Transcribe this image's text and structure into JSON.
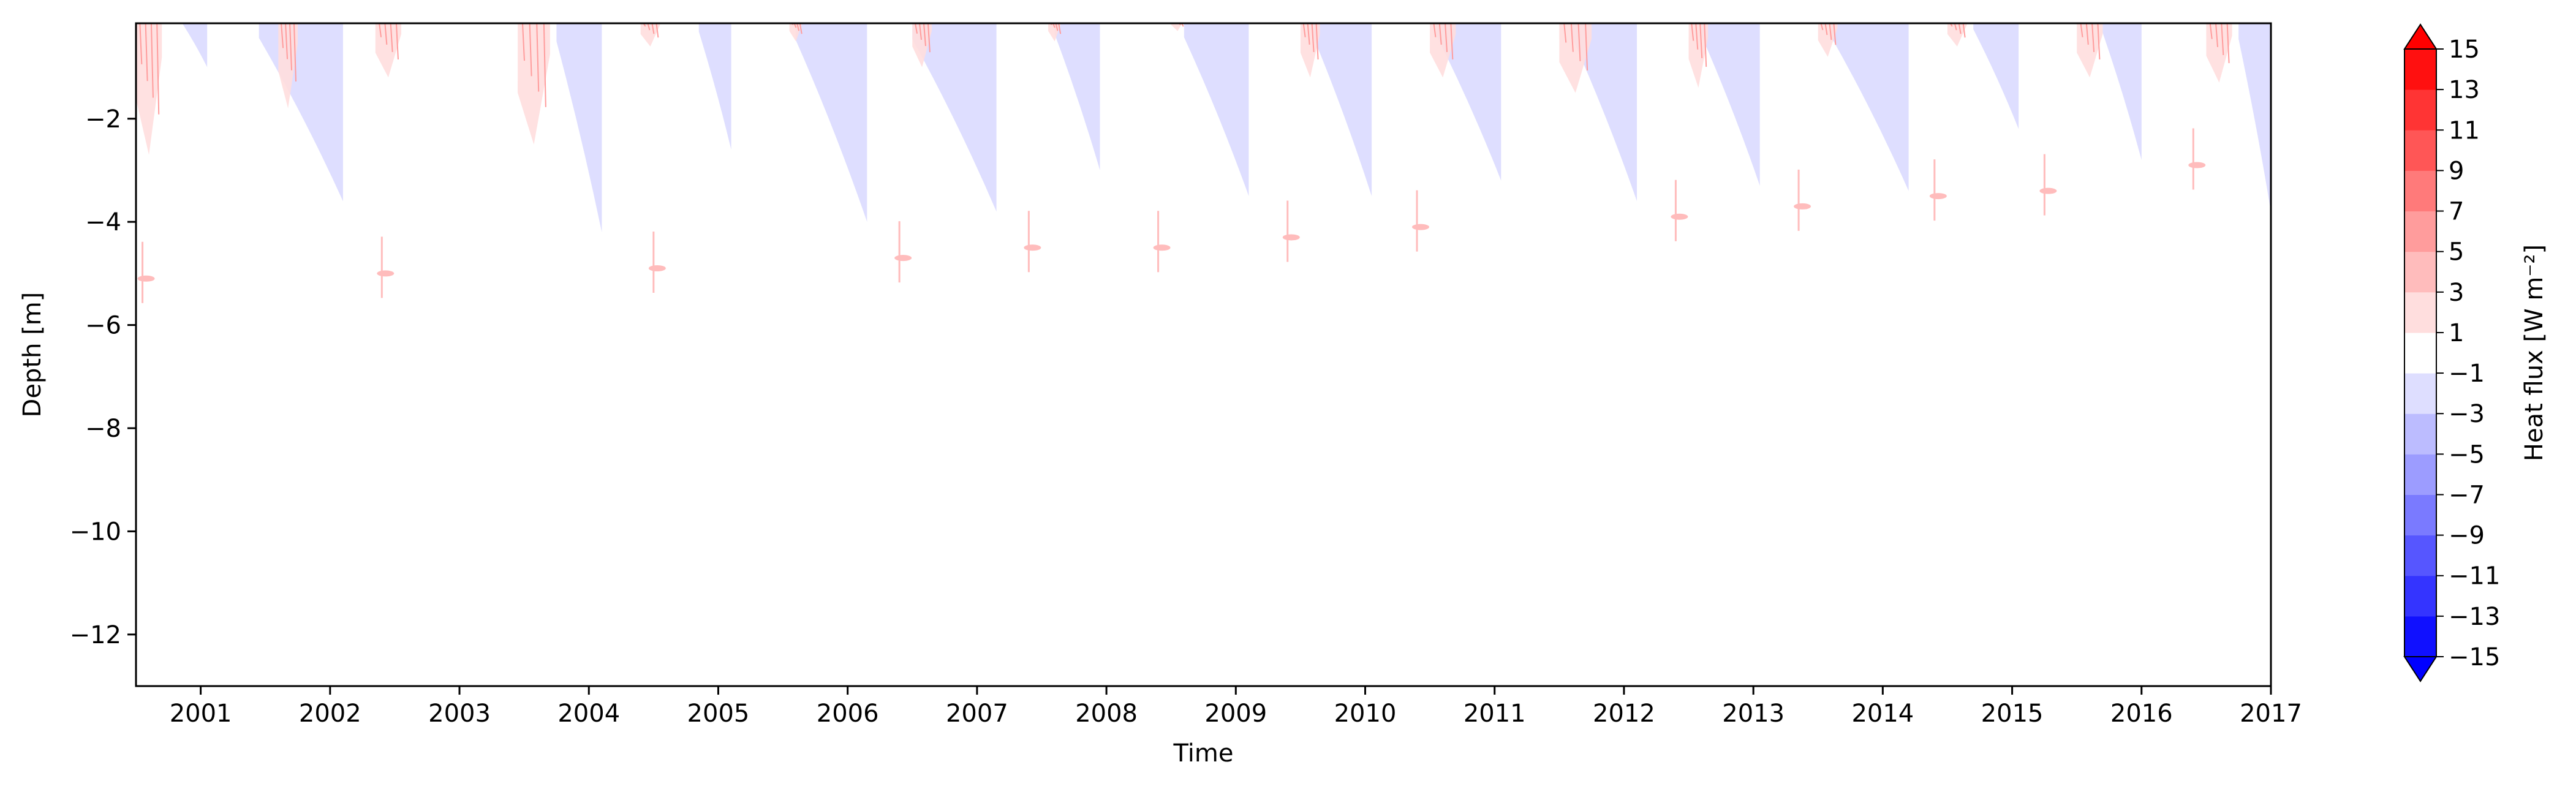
{
  "chart_data": {
    "type": "heatmap",
    "title": "",
    "xlabel": "Time",
    "ylabel": "Depth [m]",
    "x_tick_labels": [
      "2001",
      "2002",
      "2003",
      "2004",
      "2005",
      "2006",
      "2007",
      "2008",
      "2009",
      "2010",
      "2011",
      "2012",
      "2013",
      "2014",
      "2015",
      "2016",
      "2017"
    ],
    "x_ticks": [
      2001,
      2002,
      2003,
      2004,
      2005,
      2006,
      2007,
      2008,
      2009,
      2010,
      2011,
      2012,
      2013,
      2014,
      2015,
      2016,
      2017
    ],
    "xlim": [
      2000.5,
      2017.0
    ],
    "y_ticks": [
      -2,
      -4,
      -6,
      -8,
      -10,
      -12
    ],
    "y_tick_labels": [
      "−2",
      "−4",
      "−6",
      "−8",
      "−10",
      "−12"
    ],
    "ylim": [
      -13,
      -0.15
    ],
    "colorbar": {
      "label": "Heat flux [W m⁻²]",
      "levels": [
        -15,
        -13,
        -11,
        -9,
        -7,
        -5,
        -3,
        -1,
        1,
        3,
        5,
        7,
        9,
        11,
        13,
        15
      ],
      "level_labels": [
        "−15",
        "−13",
        "−11",
        "−9",
        "−7",
        "−5",
        "−3",
        "−1",
        "1",
        "3",
        "5",
        "7",
        "9",
        "11",
        "13",
        "15"
      ],
      "colors": [
        "#1010ff",
        "#3434ff",
        "#5656ff",
        "#7a7aff",
        "#9c9cff",
        "#bcbcff",
        "#dedeff",
        "#ffffff",
        "#ffdede",
        "#ffbcbc",
        "#ff9c9c",
        "#ff7a7a",
        "#ff5656",
        "#ff3434",
        "#ff1010"
      ],
      "extend_low": "#0000ff",
      "extend_high": "#ff0000"
    },
    "cold_events": [
      {
        "start": 2000.85,
        "end": 2001.05,
        "depth": -1.0,
        "level": -2
      },
      {
        "start": 2001.45,
        "end": 2002.1,
        "depth": -3.6,
        "level": -2
      },
      {
        "start": 2003.75,
        "end": 2004.1,
        "depth": -4.2,
        "level": -2
      },
      {
        "start": 2004.85,
        "end": 2005.1,
        "depth": -2.6,
        "level": -2
      },
      {
        "start": 2005.6,
        "end": 2006.15,
        "depth": -4.0,
        "level": -2
      },
      {
        "start": 2006.5,
        "end": 2007.15,
        "depth": -3.8,
        "level": -2
      },
      {
        "start": 2007.6,
        "end": 2007.95,
        "depth": -3.0,
        "level": -2
      },
      {
        "start": 2008.6,
        "end": 2009.1,
        "depth": -3.5,
        "level": -2
      },
      {
        "start": 2009.6,
        "end": 2010.05,
        "depth": -3.5,
        "level": -2
      },
      {
        "start": 2010.55,
        "end": 2011.05,
        "depth": -3.2,
        "level": -2
      },
      {
        "start": 2011.6,
        "end": 2012.1,
        "depth": -3.6,
        "level": -2
      },
      {
        "start": 2012.6,
        "end": 2013.05,
        "depth": -3.3,
        "level": -2
      },
      {
        "start": 2013.6,
        "end": 2014.2,
        "depth": -3.4,
        "level": -2
      },
      {
        "start": 2014.7,
        "end": 2015.05,
        "depth": -2.2,
        "level": -2
      },
      {
        "start": 2015.7,
        "end": 2016.0,
        "depth": -2.8,
        "level": -2
      },
      {
        "start": 2016.75,
        "end": 2017.0,
        "depth": -3.8,
        "level": -2
      }
    ],
    "warm_events": [
      {
        "start": 2000.5,
        "end": 2000.7,
        "depth": -2.7,
        "level": 2
      },
      {
        "start": 2001.6,
        "end": 2001.75,
        "depth": -1.8,
        "level": 2
      },
      {
        "start": 2002.35,
        "end": 2002.55,
        "depth": -1.2,
        "level": 2
      },
      {
        "start": 2003.45,
        "end": 2003.7,
        "depth": -2.5,
        "level": 2
      },
      {
        "start": 2004.4,
        "end": 2004.55,
        "depth": -0.6,
        "level": 2
      },
      {
        "start": 2005.55,
        "end": 2005.65,
        "depth": -0.5,
        "level": 2
      },
      {
        "start": 2006.5,
        "end": 2006.65,
        "depth": -1.0,
        "level": 2
      },
      {
        "start": 2007.55,
        "end": 2007.65,
        "depth": -0.5,
        "level": 2
      },
      {
        "start": 2008.5,
        "end": 2008.6,
        "depth": -0.3,
        "level": 2
      },
      {
        "start": 2009.5,
        "end": 2009.65,
        "depth": -1.2,
        "level": 2
      },
      {
        "start": 2010.5,
        "end": 2010.7,
        "depth": -1.2,
        "level": 2
      },
      {
        "start": 2011.5,
        "end": 2011.75,
        "depth": -1.5,
        "level": 2
      },
      {
        "start": 2012.5,
        "end": 2012.65,
        "depth": -1.4,
        "level": 2
      },
      {
        "start": 2013.5,
        "end": 2013.65,
        "depth": -0.8,
        "level": 2
      },
      {
        "start": 2014.5,
        "end": 2014.65,
        "depth": -0.6,
        "level": 2
      },
      {
        "start": 2015.5,
        "end": 2015.7,
        "depth": -1.2,
        "level": 2
      },
      {
        "start": 2016.5,
        "end": 2016.7,
        "depth": -1.3,
        "level": 2
      }
    ],
    "warm_spots": [
      {
        "x": 2000.55,
        "depth": -5.1
      },
      {
        "x": 2002.4,
        "depth": -5.0
      },
      {
        "x": 2004.5,
        "depth": -4.9
      },
      {
        "x": 2006.4,
        "depth": -4.7
      },
      {
        "x": 2007.4,
        "depth": -4.5
      },
      {
        "x": 2008.4,
        "depth": -4.5
      },
      {
        "x": 2009.4,
        "depth": -4.3
      },
      {
        "x": 2010.4,
        "depth": -4.1
      },
      {
        "x": 2012.4,
        "depth": -3.9
      },
      {
        "x": 2013.35,
        "depth": -3.7
      },
      {
        "x": 2014.4,
        "depth": -3.5
      },
      {
        "x": 2015.25,
        "depth": -3.4
      },
      {
        "x": 2016.4,
        "depth": -2.9
      }
    ]
  }
}
